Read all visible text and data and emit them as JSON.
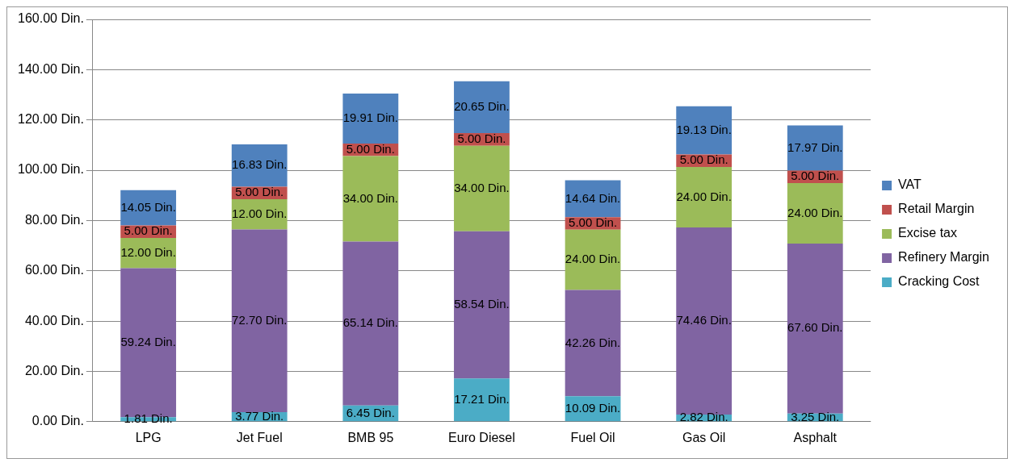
{
  "chart_data": {
    "type": "bar",
    "stacked": true,
    "categories": [
      "LPG",
      "Jet Fuel",
      "BMB 95",
      "Euro Diesel",
      "Fuel Oil",
      "Gas Oil",
      "Asphalt"
    ],
    "series": [
      {
        "name": "Cracking Cost",
        "color": "#4bacc6",
        "values": [
          1.81,
          3.77,
          6.45,
          17.21,
          10.09,
          2.82,
          3.25
        ],
        "value_labels": [
          "1.81 Din.",
          "3.77 Din.",
          "6.45 Din.",
          "17.21 Din.",
          "10.09 Din.",
          "2.82 Din.",
          "3.25 Din."
        ]
      },
      {
        "name": "Refinery Margin",
        "color": "#8064a2",
        "values": [
          59.24,
          72.7,
          65.14,
          58.54,
          42.26,
          74.46,
          67.6
        ],
        "value_labels": [
          "59.24 Din.",
          "72.70 Din.",
          "65.14 Din.",
          "58.54 Din.",
          "42.26 Din.",
          "74.46 Din.",
          "67.60 Din."
        ]
      },
      {
        "name": "Excise tax",
        "color": "#9bbb59",
        "values": [
          12,
          12,
          34,
          34,
          24,
          24,
          24
        ],
        "value_labels": [
          "12.00 Din.",
          "12.00 Din.",
          "34.00 Din.",
          "34.00 Din.",
          "24.00 Din.",
          "24.00 Din.",
          "24.00 Din."
        ]
      },
      {
        "name": "Retail Margin",
        "color": "#c0504d",
        "values": [
          5,
          5,
          5,
          5,
          5,
          5,
          5
        ],
        "value_labels": [
          "5.00 Din.",
          "5.00 Din.",
          "5.00 Din.",
          "5.00 Din.",
          "5.00 Din.",
          "5.00 Din.",
          "5.00 Din."
        ]
      },
      {
        "name": "VAT",
        "color": "#4f81bd",
        "values": [
          14.05,
          16.83,
          19.91,
          20.65,
          14.64,
          19.13,
          17.97
        ],
        "value_labels": [
          "14.05 Din.",
          "16.83 Din.",
          "19.91 Din.",
          "20.65 Din.",
          "14.64 Din.",
          "19.13 Din.",
          "17.97 Din."
        ]
      }
    ],
    "ylim": [
      0,
      160
    ],
    "yticks": [
      {
        "value": 0,
        "label": "0.00 Din."
      },
      {
        "value": 20,
        "label": "20.00 Din."
      },
      {
        "value": 40,
        "label": "40.00 Din."
      },
      {
        "value": 60,
        "label": "60.00 Din."
      },
      {
        "value": 80,
        "label": "80.00 Din."
      },
      {
        "value": 100,
        "label": "100.00 Din."
      },
      {
        "value": 120,
        "label": "120.00 Din."
      },
      {
        "value": 140,
        "label": "140.00 Din."
      },
      {
        "value": 160,
        "label": "160.00 Din."
      }
    ],
    "grid": "y",
    "legend": "right"
  }
}
